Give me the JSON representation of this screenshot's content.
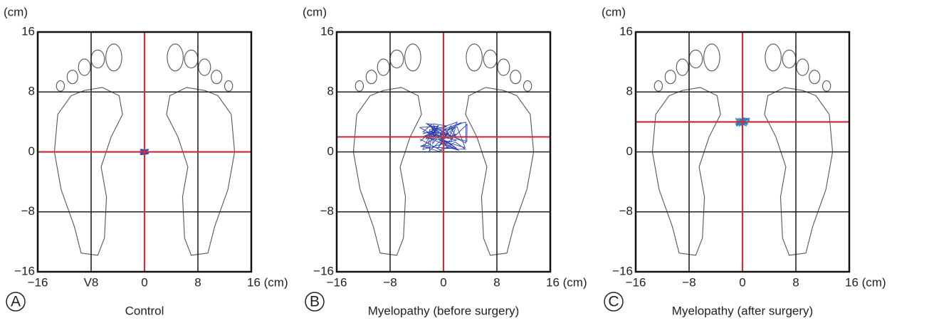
{
  "chart_data": [
    {
      "type": "stabilogram",
      "panel_label": "A",
      "caption": "Control",
      "y_label": "(cm)",
      "xlim": [
        -16,
        16
      ],
      "ylim": [
        -16,
        16
      ],
      "xticks": [
        {
          "value": -16,
          "label": "−16"
        },
        {
          "value": -8,
          "label": "V8"
        },
        0,
        8,
        {
          "value": 16,
          "label": "16 (cm)"
        }
      ],
      "yticks": [
        16,
        8,
        0,
        {
          "value": -8,
          "label": "−8"
        },
        {
          "value": -16,
          "label": "−16"
        }
      ],
      "center": {
        "x": 0,
        "y": 0
      },
      "grid": true,
      "center_color": "#c8323f",
      "trace_color": "#2a4fb0"
    },
    {
      "type": "stabilogram",
      "panel_label": "B",
      "caption": "Myelopathy (before surgery)",
      "y_label": "(cm)",
      "xlim": [
        -16,
        16
      ],
      "ylim": [
        -16,
        16
      ],
      "xticks": [
        {
          "value": -16,
          "label": "−16"
        },
        {
          "value": -8,
          "label": "−8"
        },
        0,
        8,
        {
          "value": 16,
          "label": "16 (cm)"
        }
      ],
      "yticks": [
        16,
        8,
        0,
        {
          "value": -8,
          "label": "−8"
        },
        {
          "value": -16,
          "label": "−16"
        }
      ],
      "center": {
        "x": 0,
        "y": 2
      },
      "grid": true,
      "center_color": "#c8323f",
      "trace_color": "#2a3fb0"
    },
    {
      "type": "stabilogram",
      "panel_label": "C",
      "caption": "Myelopathy (after surgery)",
      "y_label": "(cm)",
      "xlim": [
        -16,
        16
      ],
      "ylim": [
        -16,
        16
      ],
      "xticks": [
        {
          "value": -16,
          "label": "−16"
        },
        {
          "value": -8,
          "label": "−8"
        },
        0,
        8,
        {
          "value": 16,
          "label": "16 (cm)"
        }
      ],
      "yticks": [
        16,
        8,
        0,
        {
          "value": -8,
          "label": "−8"
        },
        {
          "value": -16,
          "label": "−16"
        }
      ],
      "center": {
        "x": 0,
        "y": 4
      },
      "grid": true,
      "center_color": "#c8323f",
      "trace_color": "#2a7fc0"
    }
  ]
}
